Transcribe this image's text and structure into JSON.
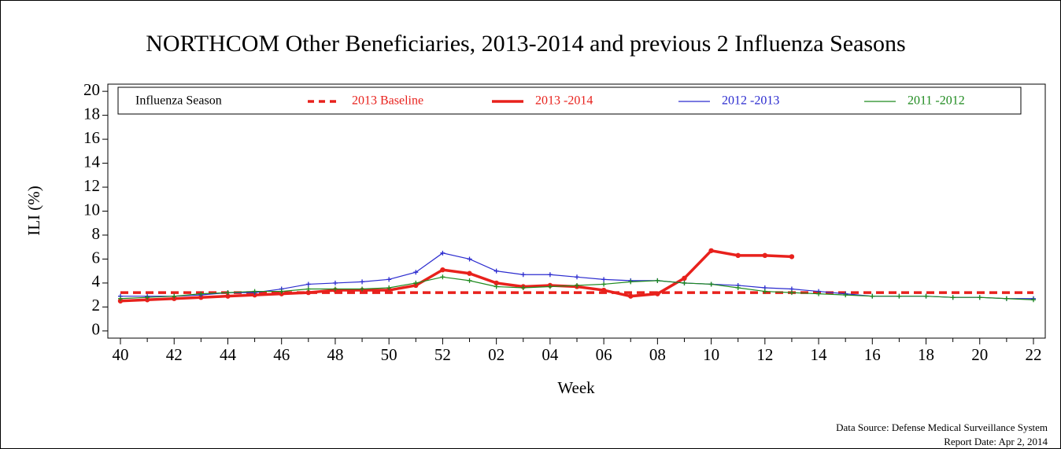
{
  "chart_data": {
    "type": "line",
    "title": "NORTHCOM Other Beneficiaries, 2013-2014 and previous 2 Influenza Seasons",
    "y_label": "ILI (%)",
    "x_label": "Week",
    "legend_title": "Influenza Season",
    "source": "Data Source: Defense Medical Surveillance System",
    "report_date": "Report Date: Apr 2, 2014",
    "categories": [
      "40",
      null,
      "42",
      null,
      "44",
      null,
      "46",
      null,
      "48",
      null,
      "50",
      null,
      "52",
      null,
      "02",
      null,
      "04",
      null,
      "06",
      null,
      "08",
      null,
      "10",
      null,
      "12",
      null,
      "14",
      null,
      "16",
      null,
      "18",
      null,
      "20",
      null,
      "22"
    ],
    "ylim": [
      -0.6,
      20.6
    ],
    "yticks": [
      0,
      2,
      4,
      6,
      8,
      10,
      12,
      14,
      16,
      18,
      20
    ],
    "baseline": {
      "name": "2013 Baseline",
      "color": "#e8211c",
      "value": 3.2
    },
    "series": [
      {
        "name": "2013 -2014",
        "color": "#e8211c",
        "values": [
          2.5,
          2.6,
          2.7,
          2.8,
          2.9,
          3.0,
          3.1,
          3.2,
          3.4,
          3.4,
          3.4,
          3.8,
          5.1,
          4.8,
          4.0,
          3.7,
          3.8,
          3.7,
          3.4,
          2.9,
          3.1,
          4.4,
          6.7,
          6.3,
          6.3,
          6.2,
          null,
          null,
          null,
          null,
          null,
          null,
          null,
          null,
          null
        ]
      },
      {
        "name": "2012 -2013",
        "color": "#2b2bcf",
        "values": [
          2.9,
          2.9,
          2.9,
          3.0,
          3.2,
          3.2,
          3.5,
          3.9,
          4.0,
          4.1,
          4.3,
          4.9,
          6.5,
          6.0,
          5.0,
          4.7,
          4.7,
          4.5,
          4.3,
          4.2,
          4.2,
          4.0,
          3.9,
          3.8,
          3.6,
          3.5,
          3.3,
          3.1,
          2.9,
          2.9,
          2.9,
          2.8,
          2.8,
          2.7,
          2.7
        ]
      },
      {
        "name": "2011 -2012",
        "color": "#1e8a1e",
        "values": [
          2.7,
          2.8,
          2.9,
          3.1,
          3.2,
          3.3,
          3.3,
          3.5,
          3.5,
          3.5,
          3.6,
          4.0,
          4.5,
          4.2,
          3.7,
          3.6,
          3.7,
          3.8,
          3.9,
          4.1,
          4.2,
          4.0,
          3.9,
          3.6,
          3.3,
          3.2,
          3.1,
          3.0,
          2.9,
          2.9,
          2.9,
          2.8,
          2.8,
          2.7,
          2.6
        ]
      }
    ]
  }
}
